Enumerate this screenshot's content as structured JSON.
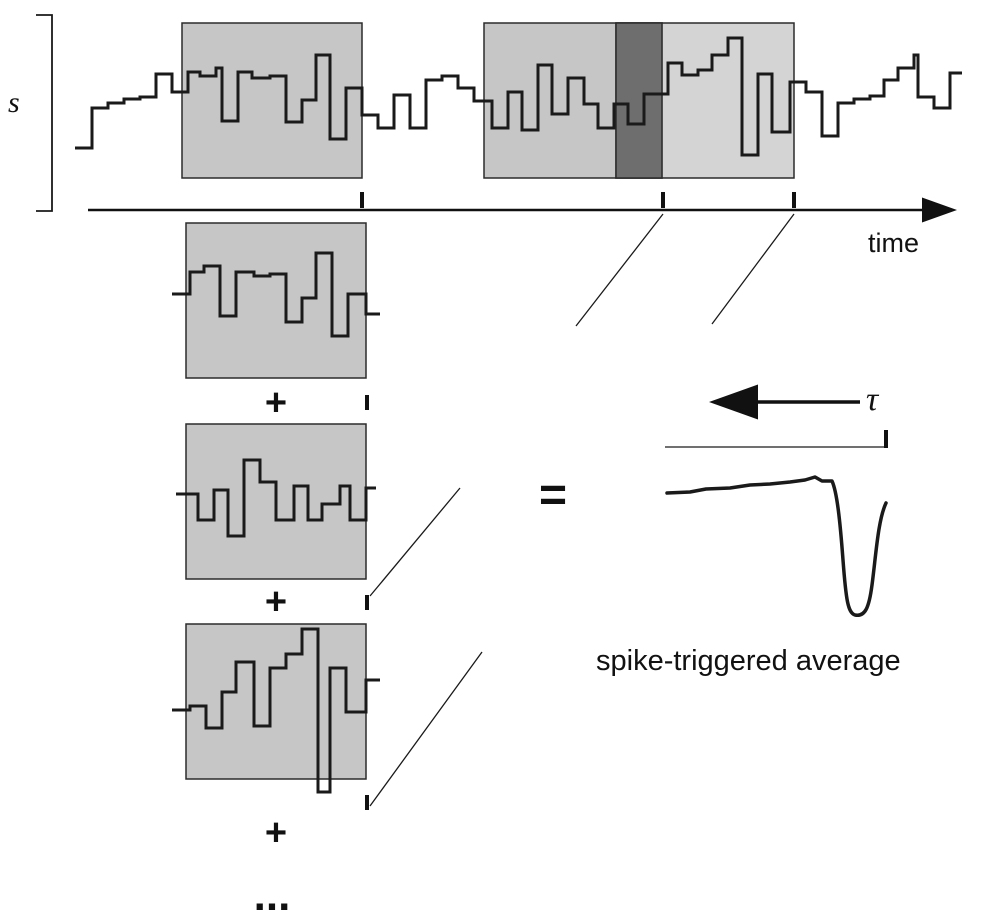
{
  "labels": {
    "stimulus": "s",
    "time": "time",
    "tau": "τ",
    "equals": "=",
    "plus": "+",
    "ellipsis": "...",
    "sta": "spike-triggered average"
  },
  "colors": {
    "window_fill": "#c6c6c6",
    "window_highlight": "#6e6e6e",
    "stroke": "#1a1a1a",
    "background": "#ffffff"
  }
}
